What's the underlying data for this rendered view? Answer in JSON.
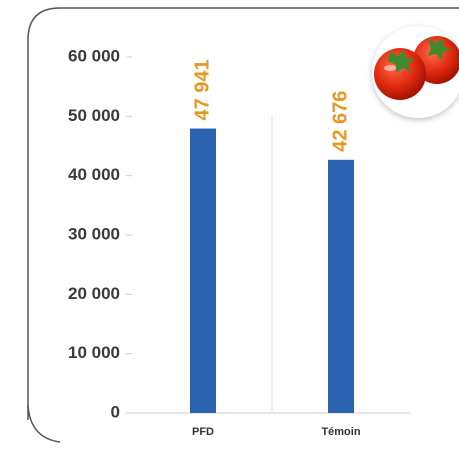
{
  "chart_data": {
    "type": "bar",
    "categories": [
      "PFD",
      "Témoin"
    ],
    "values": [
      47941,
      42676
    ],
    "value_labels": [
      "47 941",
      "42 676"
    ],
    "color": "#2a62b0",
    "label_color": "#e8961e",
    "ylim": [
      0,
      60000
    ],
    "yticks": [
      0,
      {
        "value": 10000,
        "label": "10 000"
      },
      {
        "value": 20000,
        "label": "20 000"
      },
      {
        "value": 30000,
        "label": "30 000"
      },
      {
        "value": 40000,
        "label": "40 000"
      },
      {
        "value": 50000,
        "label": "50 000"
      },
      {
        "value": 60000,
        "label": "60 000"
      }
    ]
  }
}
